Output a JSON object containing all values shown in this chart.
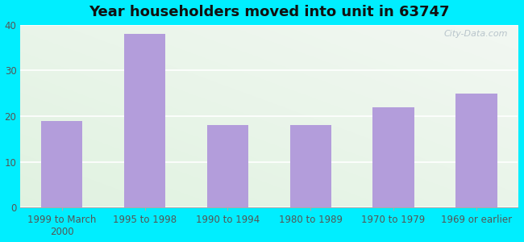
{
  "title": "Year householders moved into unit in 63747",
  "categories": [
    "1999 to March\n2000",
    "1995 to 1998",
    "1990 to 1994",
    "1980 to 1989",
    "1970 to 1979",
    "1969 or earlier"
  ],
  "values": [
    19,
    38,
    18,
    18,
    22,
    25
  ],
  "bar_color": "#b39ddb",
  "ylim": [
    0,
    40
  ],
  "yticks": [
    0,
    10,
    20,
    30,
    40
  ],
  "background_outer": "#00eeff",
  "title_fontsize": 13,
  "tick_fontsize": 8.5,
  "watermark": "City-Data.com"
}
